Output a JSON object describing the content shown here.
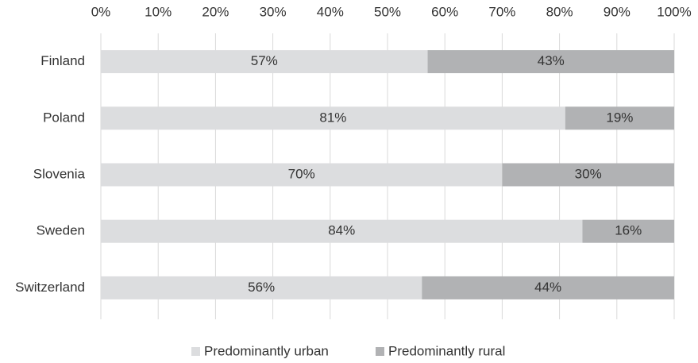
{
  "chart_data": {
    "type": "stacked_barh",
    "categories": [
      "Finland",
      "Poland",
      "Slovenia",
      "Sweden",
      "Switzerland"
    ],
    "series": [
      {
        "name": "Predominantly urban",
        "color": "#dcdddf",
        "values": [
          57,
          81,
          70,
          84,
          56
        ],
        "value_labels": [
          "57%",
          "81%",
          "70%",
          "84%",
          "56%"
        ]
      },
      {
        "name": "Predominantly rural",
        "color": "#b1b2b4",
        "values": [
          43,
          19,
          30,
          16,
          44
        ],
        "value_labels": [
          "43%",
          "19%",
          "30%",
          "16%",
          "44%"
        ]
      }
    ],
    "xlim": [
      0,
      100
    ],
    "xticks": [
      {
        "value": 0,
        "label": "0%"
      },
      {
        "value": 10,
        "label": "10%"
      },
      {
        "value": 20,
        "label": "20%"
      },
      {
        "value": 30,
        "label": "30%"
      },
      {
        "value": 40,
        "label": "40%"
      },
      {
        "value": 50,
        "label": "50%"
      },
      {
        "value": 60,
        "label": "60%"
      },
      {
        "value": 70,
        "label": "70%"
      },
      {
        "value": 80,
        "label": "80%"
      },
      {
        "value": 90,
        "label": "90%"
      },
      {
        "value": 100,
        "label": "100%"
      }
    ],
    "grid": true,
    "legend": "bottom"
  }
}
